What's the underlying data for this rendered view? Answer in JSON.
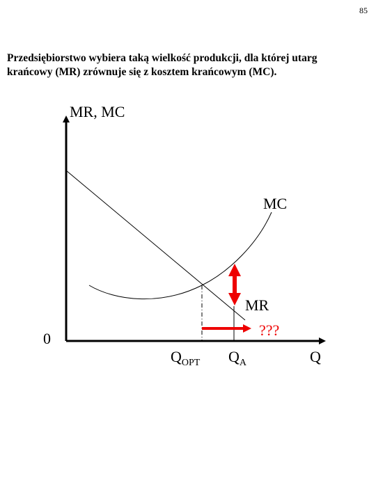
{
  "page_number": "85",
  "heading": {
    "lines": [
      "Przedsiębiorstwo wybiera taką wielkość produkcji, dla której utarg",
      "krańcowy (MR) zrównuje się z kosztem krańcowym (MC)."
    ]
  },
  "diagram": {
    "y_axis_label": "MR, MC",
    "origin_label": "0",
    "mc_label": "MC",
    "mr_label": "MR",
    "question_label": "???",
    "q_opt": {
      "main": "Q",
      "sub": "OPT"
    },
    "q_a": {
      "main": "Q",
      "sub": "A"
    },
    "x_axis_label": "Q"
  }
}
